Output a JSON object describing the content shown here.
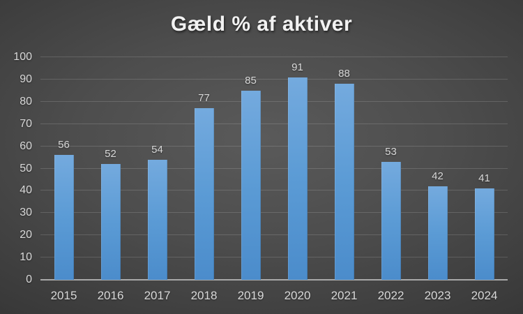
{
  "title": "Gæld % af aktiver",
  "chart_data": {
    "type": "bar",
    "title": "Gæld % af aktiver",
    "categories": [
      "2015",
      "2016",
      "2017",
      "2018",
      "2019",
      "2020",
      "2021",
      "2022",
      "2023",
      "2024"
    ],
    "values": [
      56,
      52,
      54,
      77,
      85,
      91,
      88,
      53,
      42,
      41
    ],
    "xlabel": "",
    "ylabel": "",
    "ylim": [
      0,
      100
    ],
    "ytick_step": 10,
    "ytick_labels": [
      "0",
      "10",
      "20",
      "30",
      "40",
      "50",
      "60",
      "70",
      "80",
      "90",
      "100"
    ],
    "grid": true,
    "legend": false,
    "data_labels": true,
    "colors": {
      "background_center": "#575757",
      "background_edge": "#262626",
      "bar_top": "#74aade",
      "bar_main": "#5b9bd5",
      "bar_bottom": "#4b8ccb",
      "gridline": "rgba(255,255,255,0.15)",
      "axis_line": "#a9a9a9",
      "tick_label": "#d9d9d9",
      "title": "#f2f2f2"
    }
  }
}
